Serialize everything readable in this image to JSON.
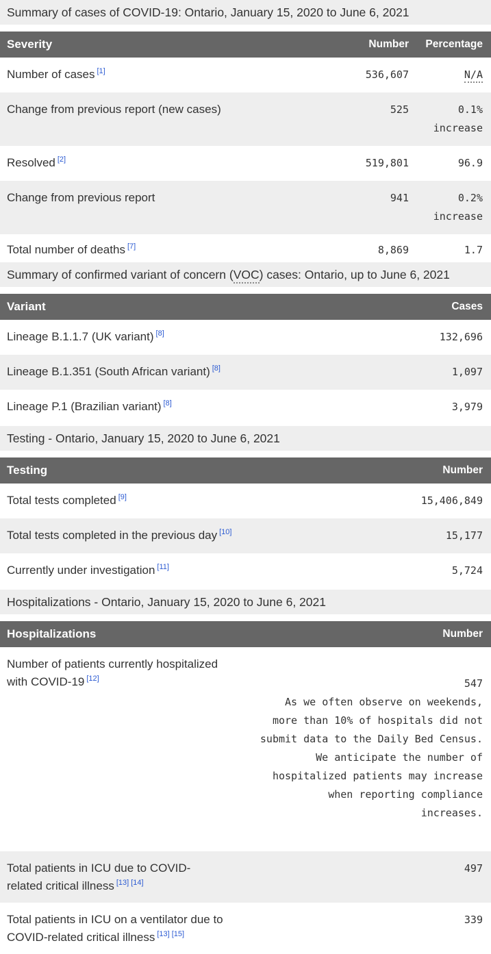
{
  "palette": {
    "header_bg": "#666666",
    "band_bg": "#eeeeee",
    "alt_row_bg": "#eeeeee",
    "text": "#333333",
    "header_text": "#ffffff",
    "footnote_link": "#2b5ad2"
  },
  "sections": [
    {
      "title": {
        "pre": "Summary of cases of COVID-19: Ontario, January 15, 2020 to June 6, 2021",
        "abbr": "",
        "post": ""
      },
      "columns": {
        "label": "Severity",
        "number": "Number",
        "percentage": "Percentage"
      },
      "rows": [
        {
          "label": "Number of cases",
          "refs": "[1]",
          "number": "536,607",
          "percentage": "N/A"
        },
        {
          "label": "Change from previous report (new cases)",
          "refs": "",
          "number": "525",
          "percentage": "0.1%\nincrease"
        },
        {
          "label": "Resolved",
          "refs": "[2]",
          "number": "519,801",
          "percentage": "96.9"
        },
        {
          "label": "Change from previous report",
          "refs": "",
          "number": "941",
          "percentage": "0.2%\nincrease"
        },
        {
          "label": "Total number of deaths",
          "refs": "[7]",
          "number": "8,869",
          "percentage": "1.7"
        }
      ]
    },
    {
      "title": {
        "pre": "Summary of confirmed variant of concern (",
        "abbr": "VOC",
        "post": ") cases: Ontario, up to June 6, 2021"
      },
      "columns": {
        "label": "Variant",
        "number": "Cases"
      },
      "rows": [
        {
          "label": "Lineage B.1.1.7 (UK variant)",
          "refs": "[8]",
          "number": "132,696"
        },
        {
          "label": "Lineage B.1.351 (South African variant)",
          "refs": "[8]",
          "number": "1,097"
        },
        {
          "label": "Lineage P.1 (Brazilian variant)",
          "refs": "[8]",
          "number": "3,979"
        }
      ]
    },
    {
      "title": {
        "pre": "Testing - Ontario, January 15, 2020 to June 6, 2021",
        "abbr": "",
        "post": ""
      },
      "columns": {
        "label": "Testing",
        "number": "Number"
      },
      "rows": [
        {
          "label": "Total tests completed",
          "refs": "[9]",
          "number": "15,406,849"
        },
        {
          "label": "Total tests completed in the previous day",
          "refs": "[10]",
          "number": "15,177"
        },
        {
          "label": "Currently under investigation",
          "refs": "[11]",
          "number": "5,724"
        }
      ]
    },
    {
      "title": {
        "pre": "Hospitalizations - Ontario, January 15, 2020 to June 6, 2021",
        "abbr": "",
        "post": ""
      },
      "columns": {
        "label": "Hospitalizations",
        "number": "Number"
      },
      "rows": [
        {
          "label": "Number of patients currently hospitalized with COVID-19",
          "refs": "[12]",
          "number": "547",
          "note": "As we often observe on weekends,\nmore than 10% of hospitals did not\nsubmit data to the Daily Bed Census.\nWe anticipate the number of\nhospitalized patients may increase\nwhen reporting compliance\nincreases."
        },
        {
          "label": "Total patients in ICU due to COVID-related critical illness",
          "refs": "[13] [14]",
          "number": "497"
        },
        {
          "label": "Total patients in ICU on a ventilator due to COVID-related critical illness",
          "refs": "[13] [15]",
          "number": "339"
        }
      ]
    }
  ]
}
